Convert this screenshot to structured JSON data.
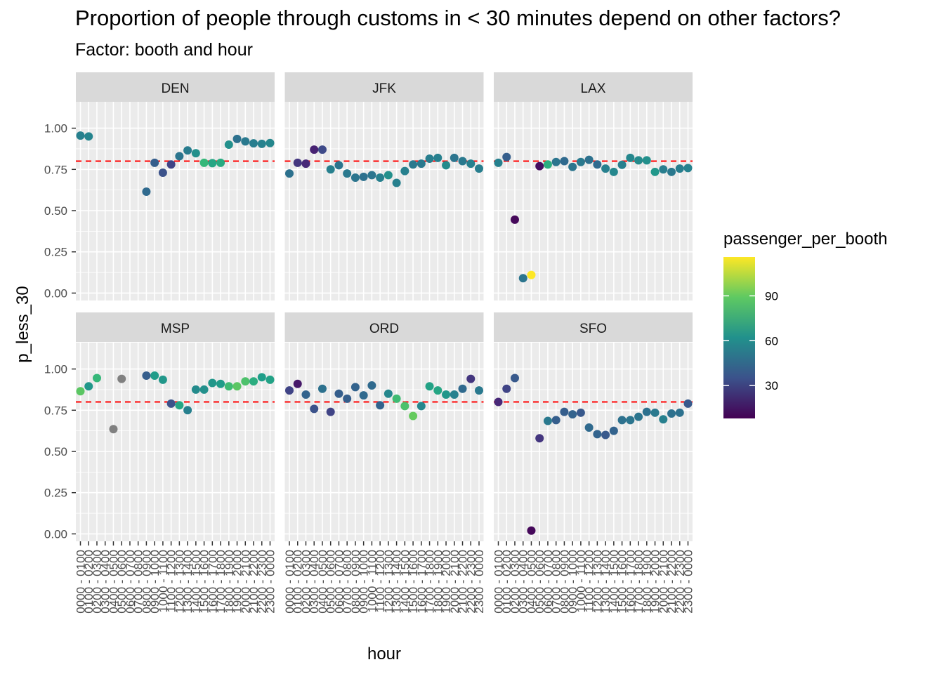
{
  "chart_data": {
    "type": "scatter",
    "title": "Proportion of people through customs in < 30 minutes depend on other factors?",
    "subtitle": "Factor: booth and hour",
    "xlabel": "hour",
    "ylabel": "p_less_30",
    "ylim": [
      0,
      1.0
    ],
    "y_ticks": [
      "0.00",
      "0.25",
      "0.50",
      "0.75",
      "1.00"
    ],
    "reference_line": {
      "y": 0.8,
      "color": "#ff0000",
      "style": "dashed"
    },
    "grid": true,
    "x_categories": [
      "0000 - 0100",
      "0100 - 0200",
      "0200 - 0300",
      "0300 - 0400",
      "0400 - 0500",
      "0500 - 0600",
      "0600 - 0700",
      "0700 - 0800",
      "0800 - 0900",
      "0900 - 1000",
      "1000 - 1100",
      "1100 - 1200",
      "1200 - 1300",
      "1300 - 1400",
      "1400 - 1500",
      "1500 - 1600",
      "1600 - 1700",
      "1700 - 1800",
      "1800 - 1900",
      "1900 - 2000",
      "2000 - 2100",
      "2100 - 2200",
      "2200 - 2300",
      "2300 - 0000"
    ],
    "legend": {
      "title": "passenger_per_booth",
      "position": "right",
      "ticks": [
        "30",
        "60",
        "90"
      ],
      "range": [
        8,
        116
      ]
    },
    "na_color": "#808080",
    "panels": [
      {
        "name": "DEN",
        "points": [
          {
            "x": 0,
            "y": 0.955,
            "c": 55
          },
          {
            "x": 1,
            "y": 0.95,
            "c": 57
          },
          {
            "x": 8,
            "y": 0.615,
            "c": 45
          },
          {
            "x": 9,
            "y": 0.79,
            "c": 40
          },
          {
            "x": 10,
            "y": 0.73,
            "c": 35
          },
          {
            "x": 11,
            "y": 0.78,
            "c": 30
          },
          {
            "x": 12,
            "y": 0.83,
            "c": 50
          },
          {
            "x": 13,
            "y": 0.865,
            "c": 53
          },
          {
            "x": 14,
            "y": 0.848,
            "c": 62
          },
          {
            "x": 15,
            "y": 0.79,
            "c": 80
          },
          {
            "x": 16,
            "y": 0.788,
            "c": 72
          },
          {
            "x": 17,
            "y": 0.79,
            "c": 74
          },
          {
            "x": 18,
            "y": 0.9,
            "c": 62
          },
          {
            "x": 19,
            "y": 0.935,
            "c": 48
          },
          {
            "x": 20,
            "y": 0.92,
            "c": 52
          },
          {
            "x": 21,
            "y": 0.908,
            "c": 54
          },
          {
            "x": 22,
            "y": 0.905,
            "c": 56
          },
          {
            "x": 23,
            "y": 0.91,
            "c": 58
          }
        ]
      },
      {
        "name": "JFK",
        "points": [
          {
            "x": 0,
            "y": 0.725,
            "c": 48
          },
          {
            "x": 1,
            "y": 0.79,
            "c": 25
          },
          {
            "x": 2,
            "y": 0.785,
            "c": 20
          },
          {
            "x": 3,
            "y": 0.87,
            "c": 18
          },
          {
            "x": 4,
            "y": 0.87,
            "c": 32
          },
          {
            "x": 5,
            "y": 0.75,
            "c": 55
          },
          {
            "x": 6,
            "y": 0.775,
            "c": 50
          },
          {
            "x": 7,
            "y": 0.725,
            "c": 52
          },
          {
            "x": 8,
            "y": 0.7,
            "c": 50
          },
          {
            "x": 9,
            "y": 0.705,
            "c": 48
          },
          {
            "x": 10,
            "y": 0.715,
            "c": 50
          },
          {
            "x": 11,
            "y": 0.7,
            "c": 55
          },
          {
            "x": 12,
            "y": 0.715,
            "c": 62
          },
          {
            "x": 13,
            "y": 0.668,
            "c": 55
          },
          {
            "x": 14,
            "y": 0.74,
            "c": 55
          },
          {
            "x": 15,
            "y": 0.78,
            "c": 52
          },
          {
            "x": 16,
            "y": 0.785,
            "c": 52
          },
          {
            "x": 17,
            "y": 0.815,
            "c": 54
          },
          {
            "x": 18,
            "y": 0.82,
            "c": 55
          },
          {
            "x": 19,
            "y": 0.775,
            "c": 60
          },
          {
            "x": 20,
            "y": 0.82,
            "c": 50
          },
          {
            "x": 21,
            "y": 0.8,
            "c": 52
          },
          {
            "x": 22,
            "y": 0.785,
            "c": 55
          },
          {
            "x": 23,
            "y": 0.755,
            "c": 54
          }
        ]
      },
      {
        "name": "LAX",
        "points": [
          {
            "x": 0,
            "y": 0.79,
            "c": 55
          },
          {
            "x": 1,
            "y": 0.825,
            "c": 40
          },
          {
            "x": 2,
            "y": 0.445,
            "c": 10
          },
          {
            "x": 3,
            "y": 0.09,
            "c": 50
          },
          {
            "x": 4,
            "y": 0.11,
            "c": 116
          },
          {
            "x": 5,
            "y": 0.77,
            "c": 12
          },
          {
            "x": 6,
            "y": 0.78,
            "c": 75
          },
          {
            "x": 7,
            "y": 0.795,
            "c": 50
          },
          {
            "x": 8,
            "y": 0.8,
            "c": 45
          },
          {
            "x": 9,
            "y": 0.765,
            "c": 50
          },
          {
            "x": 10,
            "y": 0.795,
            "c": 52
          },
          {
            "x": 11,
            "y": 0.808,
            "c": 48
          },
          {
            "x": 12,
            "y": 0.78,
            "c": 45
          },
          {
            "x": 13,
            "y": 0.755,
            "c": 55
          },
          {
            "x": 14,
            "y": 0.735,
            "c": 58
          },
          {
            "x": 15,
            "y": 0.778,
            "c": 55
          },
          {
            "x": 16,
            "y": 0.82,
            "c": 58
          },
          {
            "x": 17,
            "y": 0.805,
            "c": 60
          },
          {
            "x": 18,
            "y": 0.805,
            "c": 62
          },
          {
            "x": 19,
            "y": 0.735,
            "c": 65
          },
          {
            "x": 20,
            "y": 0.75,
            "c": 54
          },
          {
            "x": 21,
            "y": 0.735,
            "c": 52
          },
          {
            "x": 22,
            "y": 0.755,
            "c": 54
          },
          {
            "x": 23,
            "y": 0.758,
            "c": 56
          }
        ]
      },
      {
        "name": "MSP",
        "points": [
          {
            "x": 0,
            "y": 0.865,
            "c": 88
          },
          {
            "x": 1,
            "y": 0.895,
            "c": 65
          },
          {
            "x": 2,
            "y": 0.945,
            "c": 80
          },
          {
            "x": 4,
            "y": 0.635,
            "c": null
          },
          {
            "x": 5,
            "y": 0.94,
            "c": null
          },
          {
            "x": 8,
            "y": 0.96,
            "c": 40
          },
          {
            "x": 9,
            "y": 0.96,
            "c": 67
          },
          {
            "x": 10,
            "y": 0.935,
            "c": 65
          },
          {
            "x": 11,
            "y": 0.79,
            "c": 35
          },
          {
            "x": 12,
            "y": 0.78,
            "c": 72
          },
          {
            "x": 13,
            "y": 0.75,
            "c": 55
          },
          {
            "x": 14,
            "y": 0.875,
            "c": 60
          },
          {
            "x": 15,
            "y": 0.875,
            "c": 62
          },
          {
            "x": 16,
            "y": 0.915,
            "c": 65
          },
          {
            "x": 17,
            "y": 0.91,
            "c": 67
          },
          {
            "x": 18,
            "y": 0.895,
            "c": 82
          },
          {
            "x": 19,
            "y": 0.895,
            "c": 88
          },
          {
            "x": 20,
            "y": 0.925,
            "c": 85
          },
          {
            "x": 21,
            "y": 0.925,
            "c": 75
          },
          {
            "x": 22,
            "y": 0.95,
            "c": 68
          },
          {
            "x": 23,
            "y": 0.935,
            "c": 70
          }
        ]
      },
      {
        "name": "ORD",
        "points": [
          {
            "x": 0,
            "y": 0.87,
            "c": 30
          },
          {
            "x": 1,
            "y": 0.91,
            "c": 15
          },
          {
            "x": 2,
            "y": 0.845,
            "c": 42
          },
          {
            "x": 3,
            "y": 0.758,
            "c": 35
          },
          {
            "x": 4,
            "y": 0.88,
            "c": 48
          },
          {
            "x": 5,
            "y": 0.74,
            "c": 30
          },
          {
            "x": 6,
            "y": 0.85,
            "c": 40
          },
          {
            "x": 7,
            "y": 0.82,
            "c": 40
          },
          {
            "x": 8,
            "y": 0.89,
            "c": 42
          },
          {
            "x": 9,
            "y": 0.84,
            "c": 45
          },
          {
            "x": 10,
            "y": 0.9,
            "c": 45
          },
          {
            "x": 11,
            "y": 0.78,
            "c": 42
          },
          {
            "x": 12,
            "y": 0.85,
            "c": 58
          },
          {
            "x": 13,
            "y": 0.82,
            "c": 82
          },
          {
            "x": 14,
            "y": 0.775,
            "c": 85
          },
          {
            "x": 15,
            "y": 0.715,
            "c": 90
          },
          {
            "x": 16,
            "y": 0.775,
            "c": 58
          },
          {
            "x": 17,
            "y": 0.895,
            "c": 70
          },
          {
            "x": 18,
            "y": 0.87,
            "c": 72
          },
          {
            "x": 19,
            "y": 0.845,
            "c": 65
          },
          {
            "x": 20,
            "y": 0.845,
            "c": 55
          },
          {
            "x": 21,
            "y": 0.88,
            "c": 45
          },
          {
            "x": 22,
            "y": 0.94,
            "c": 25
          },
          {
            "x": 23,
            "y": 0.87,
            "c": 52
          }
        ]
      },
      {
        "name": "SFO",
        "points": [
          {
            "x": 0,
            "y": 0.8,
            "c": 20
          },
          {
            "x": 1,
            "y": 0.88,
            "c": 30
          },
          {
            "x": 2,
            "y": 0.945,
            "c": 38
          },
          {
            "x": 4,
            "y": 0.02,
            "c": 10
          },
          {
            "x": 5,
            "y": 0.58,
            "c": 25
          },
          {
            "x": 6,
            "y": 0.685,
            "c": 52
          },
          {
            "x": 7,
            "y": 0.69,
            "c": 40
          },
          {
            "x": 8,
            "y": 0.74,
            "c": 40
          },
          {
            "x": 9,
            "y": 0.725,
            "c": 42
          },
          {
            "x": 10,
            "y": 0.735,
            "c": 38
          },
          {
            "x": 11,
            "y": 0.645,
            "c": 45
          },
          {
            "x": 12,
            "y": 0.605,
            "c": 42
          },
          {
            "x": 13,
            "y": 0.6,
            "c": 38
          },
          {
            "x": 14,
            "y": 0.625,
            "c": 42
          },
          {
            "x": 15,
            "y": 0.69,
            "c": 48
          },
          {
            "x": 16,
            "y": 0.69,
            "c": 50
          },
          {
            "x": 17,
            "y": 0.71,
            "c": 50
          },
          {
            "x": 18,
            "y": 0.74,
            "c": 48
          },
          {
            "x": 19,
            "y": 0.735,
            "c": 52
          },
          {
            "x": 20,
            "y": 0.695,
            "c": 55
          },
          {
            "x": 21,
            "y": 0.73,
            "c": 48
          },
          {
            "x": 22,
            "y": 0.735,
            "c": 48
          },
          {
            "x": 23,
            "y": 0.79,
            "c": 38
          }
        ]
      }
    ]
  }
}
